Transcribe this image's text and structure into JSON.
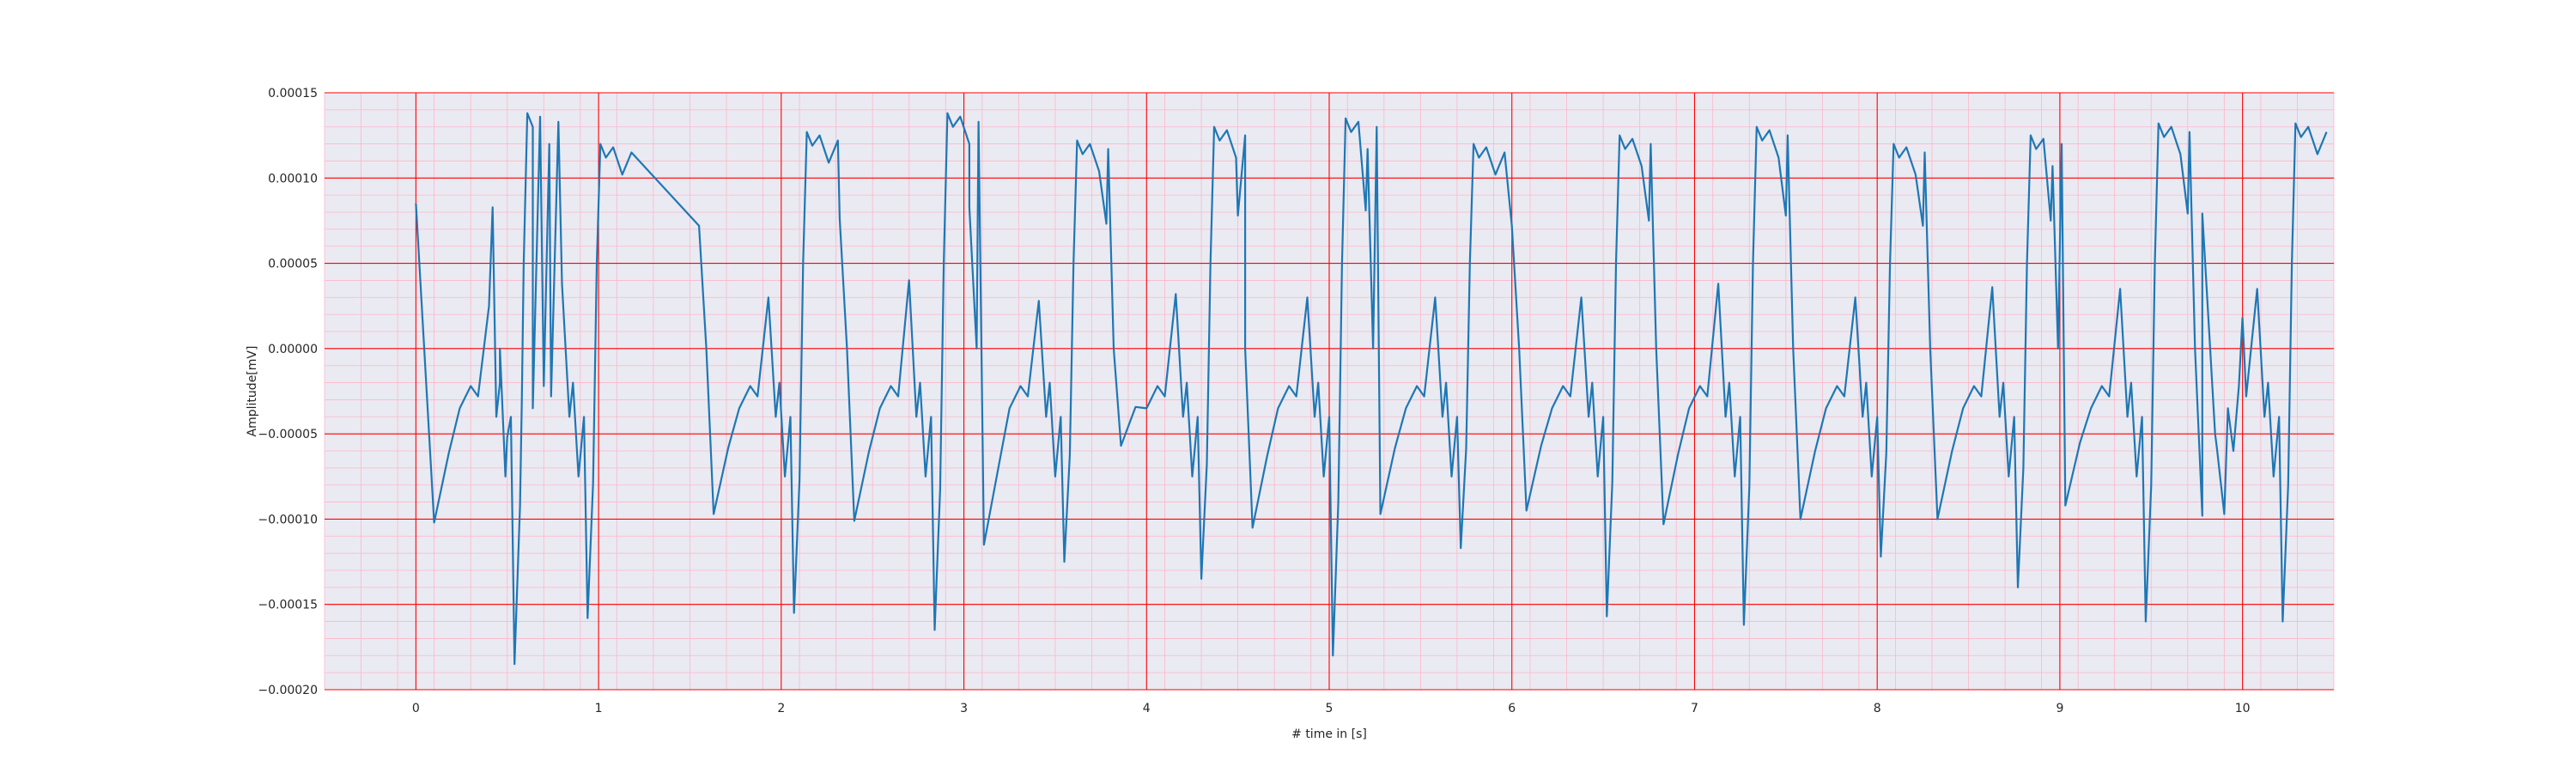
{
  "chart_data": {
    "type": "line",
    "title": "",
    "xlabel": "# time in [s]",
    "ylabel": "Amplitude[mV]",
    "xlim": [
      -0.5,
      10.5
    ],
    "ylim": [
      -0.0002,
      0.00015
    ],
    "xticks": [
      0,
      1,
      2,
      3,
      4,
      5,
      6,
      7,
      8,
      9,
      10
    ],
    "xtick_labels": [
      "0",
      "1",
      "2",
      "3",
      "4",
      "5",
      "6",
      "7",
      "8",
      "9",
      "10"
    ],
    "yticks": [
      -0.0002,
      -0.00015,
      -0.0001,
      -5e-05,
      0.0,
      5e-05,
      0.0001,
      0.00015
    ],
    "ytick_labels": [
      "−0.00020",
      "−0.00015",
      "−0.00010",
      "−0.00005",
      "0.00000",
      "0.00005",
      "0.00010",
      "0.00015"
    ],
    "grid": true,
    "minor_grid": true,
    "colors": {
      "background": "#eaeaf2",
      "major_grid": "#ff0000",
      "minor_grid": "#ffb6c8",
      "line": "#1f77b4"
    },
    "beats": [
      {
        "t0": 0.0,
        "valley": -0.000102,
        "prepeak": 2.5e-05,
        "spike": -0.000185,
        "plateau": 0.000138,
        "prev_drop": 0.0
      },
      {
        "t0": 0.58,
        "valley": -5.2e-05,
        "prepeak": 3.8e-05,
        "spike": -0.000158,
        "plateau": 0.00012,
        "prev_drop": 0.42
      },
      {
        "t0": 1.35,
        "valley": -9.7e-05,
        "prepeak": 3e-05,
        "spike": -0.000155,
        "plateau": 0.000127,
        "prev_drop": 1.55
      },
      {
        "t0": 2.1,
        "valley": -0.000101,
        "prepeak": 4e-05,
        "spike": -0.000165,
        "plateau": 0.000138,
        "prev_drop": 2.32
      },
      {
        "t0": 2.85,
        "valley": -0.000115,
        "prepeak": 2.8e-05,
        "spike": -0.000125,
        "plateau": 0.000122,
        "prev_drop": 3.03
      },
      {
        "t0": 3.6,
        "valley": -5.7e-05,
        "prepeak": 3.2e-05,
        "spike": -0.000135,
        "plateau": 0.00013,
        "prev_drop": 3.78
      },
      {
        "t0": 4.33,
        "valley": -0.000105,
        "prepeak": 3e-05,
        "spike": -0.00018,
        "plateau": 0.000135,
        "prev_drop": 4.5
      },
      {
        "t0": 5.08,
        "valley": -9.7e-05,
        "prepeak": 3e-05,
        "spike": -0.000117,
        "plateau": 0.00012,
        "prev_drop": 5.2
      },
      {
        "t0": 5.82,
        "valley": -9.5e-05,
        "prepeak": 3e-05,
        "spike": -0.000157,
        "plateau": 0.000125,
        "prev_drop": 6.0
      },
      {
        "t0": 6.57,
        "valley": -0.000103,
        "prepeak": 3.8e-05,
        "spike": -0.000162,
        "plateau": 0.00013,
        "prev_drop": 6.75
      },
      {
        "t0": 7.3,
        "valley": -0.0001,
        "prepeak": 3e-05,
        "spike": -0.000122,
        "plateau": 0.00012,
        "prev_drop": 7.5
      },
      {
        "t0": 8.05,
        "valley": -0.0001,
        "prepeak": 3.6e-05,
        "spike": -0.00014,
        "plateau": 0.000125,
        "prev_drop": 8.25
      },
      {
        "t0": 8.78,
        "valley": -9.2e-05,
        "prepeak": 3.5e-05,
        "spike": -0.00016,
        "plateau": 0.000132,
        "prev_drop": 8.95
      },
      {
        "t0": 9.52,
        "valley": -9.8e-05,
        "prepeak": 3.5e-05,
        "spike": -0.00016,
        "plateau": 0.000132,
        "prev_drop": 9.7
      }
    ],
    "end_value": 1.8e-05
  }
}
